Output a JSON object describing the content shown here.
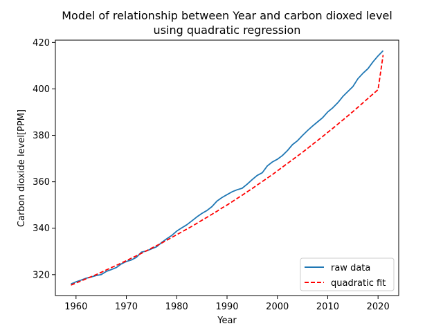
{
  "chart_data": {
    "type": "line",
    "title_line1": "Model of relationship between Year and carbon dioxed level",
    "title_line2": "using quadratic regression",
    "xlabel": "Year",
    "ylabel": "Carbon dioxide level[PPM]",
    "xlim": [
      1955.9,
      2024.1
    ],
    "ylim": [
      311,
      421
    ],
    "xticks": [
      1960,
      1970,
      1980,
      1990,
      2000,
      2010,
      2020
    ],
    "yticks": [
      320,
      340,
      360,
      380,
      400,
      420
    ],
    "grid": false,
    "legend_position": "lower-right",
    "x": [
      1959,
      1960,
      1961,
      1962,
      1963,
      1964,
      1965,
      1966,
      1967,
      1968,
      1969,
      1970,
      1971,
      1972,
      1973,
      1974,
      1975,
      1976,
      1977,
      1978,
      1979,
      1980,
      1981,
      1982,
      1983,
      1984,
      1985,
      1986,
      1987,
      1988,
      1989,
      1990,
      1991,
      1992,
      1993,
      1994,
      1995,
      1996,
      1997,
      1998,
      1999,
      2000,
      2001,
      2002,
      2003,
      2004,
      2005,
      2006,
      2007,
      2008,
      2009,
      2010,
      2011,
      2012,
      2013,
      2014,
      2015,
      2016,
      2017,
      2018,
      2019,
      2020,
      2021
    ],
    "series": [
      {
        "name": "raw data",
        "color": "#1f77b4",
        "style": "solid",
        "values": [
          315.98,
          316.91,
          317.64,
          318.45,
          318.99,
          319.62,
          320.04,
          321.37,
          322.18,
          323.05,
          324.62,
          325.68,
          326.32,
          327.46,
          329.68,
          330.19,
          331.13,
          332.03,
          333.84,
          335.41,
          336.84,
          338.76,
          340.12,
          341.48,
          343.15,
          344.87,
          346.35,
          347.61,
          349.31,
          351.69,
          353.2,
          354.45,
          355.7,
          356.54,
          357.21,
          358.96,
          360.97,
          362.74,
          363.88,
          366.84,
          368.54,
          369.71,
          371.32,
          373.45,
          375.98,
          377.7,
          379.98,
          382.09,
          384.02,
          385.83,
          387.64,
          390.1,
          391.85,
          394.06,
          396.74,
          398.87,
          401.01,
          404.41,
          406.76,
          408.72,
          411.66,
          414.24,
          416.45
        ]
      },
      {
        "name": "quadratic fit",
        "color": "#ff0000",
        "style": "dashed",
        "values": [
          315.5,
          316.4,
          317.3,
          318.2,
          319.1,
          320.0,
          321.0,
          322.0,
          323.0,
          324.0,
          325.0,
          326.0,
          327.1,
          328.1,
          329.2,
          330.3,
          331.4,
          332.5,
          333.6,
          334.8,
          336.0,
          337.2,
          338.4,
          339.6,
          340.8,
          342.1,
          343.4,
          344.7,
          346.0,
          347.3,
          348.7,
          350.0,
          351.4,
          352.8,
          354.2,
          355.7,
          357.1,
          358.6,
          360.1,
          361.6,
          363.1,
          364.7,
          366.3,
          367.9,
          369.5,
          371.1,
          372.7,
          374.4,
          376.1,
          377.8,
          379.5,
          381.3,
          383.0,
          384.8,
          386.6,
          388.4,
          390.2,
          392.1,
          394.0,
          395.9,
          397.8,
          399.7,
          414.6
        ]
      }
    ]
  }
}
